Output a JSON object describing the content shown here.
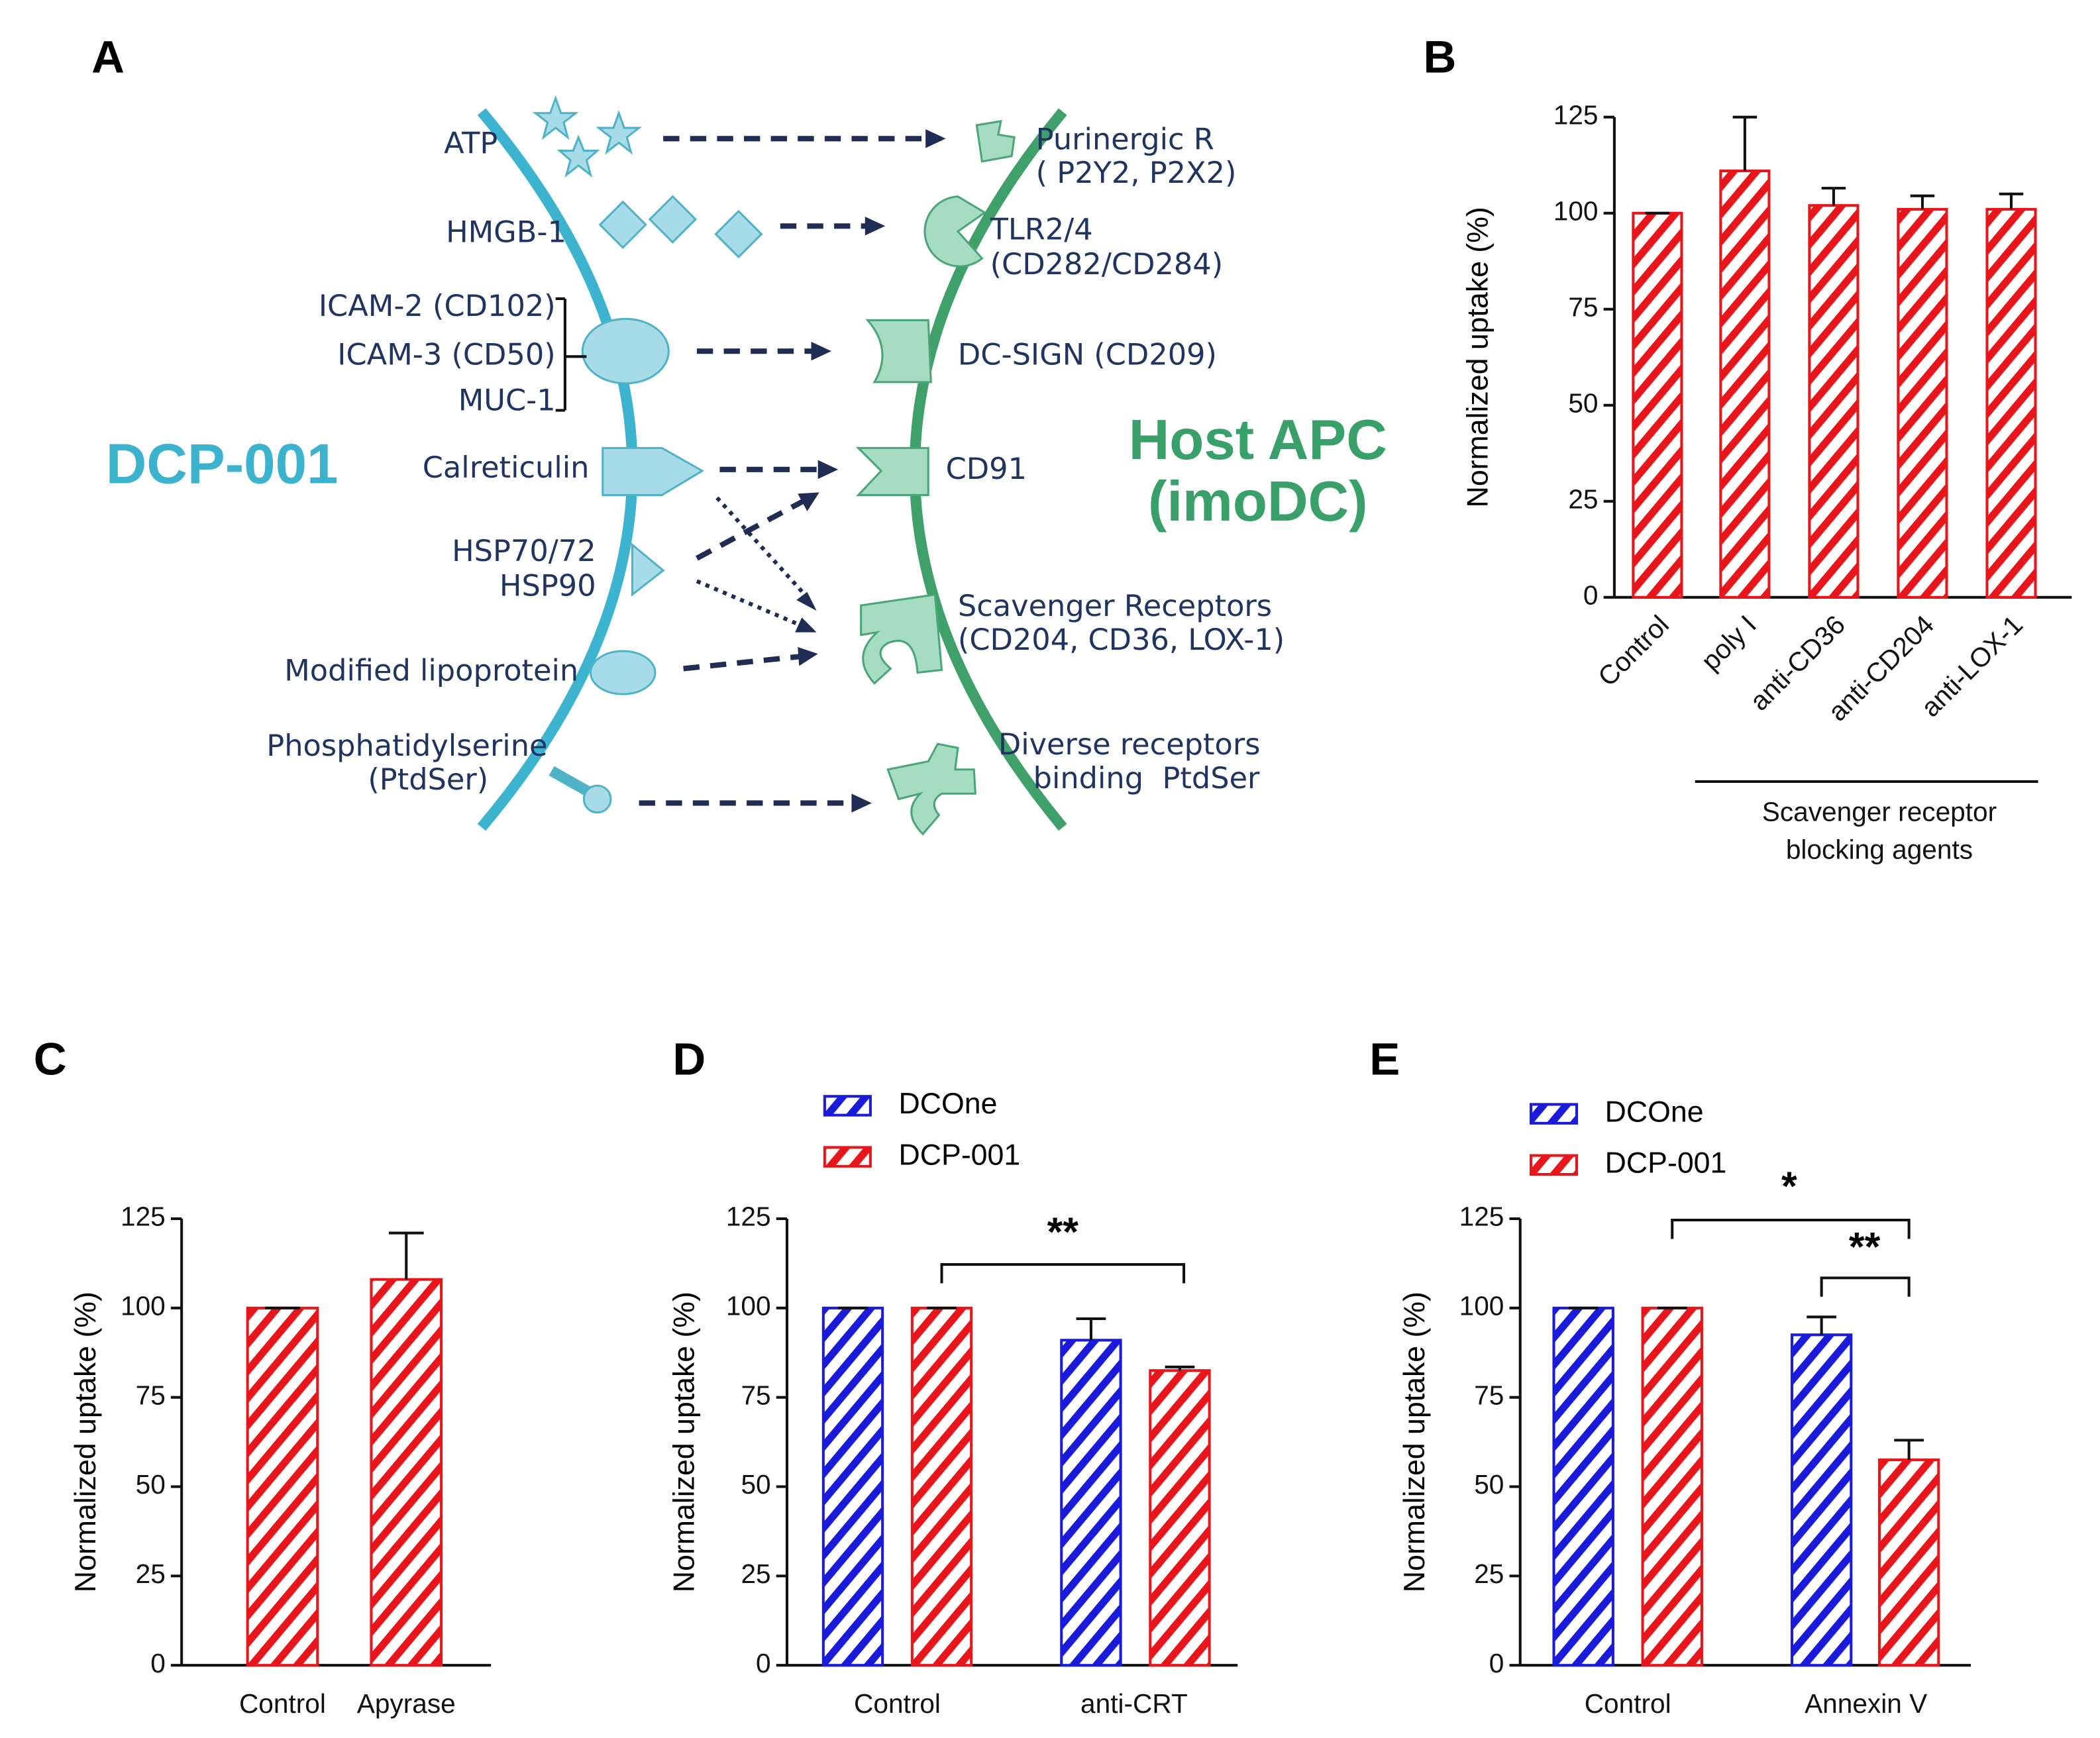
{
  "diagram": {
    "label": "A",
    "left_title": "DCP-001",
    "right_title": [
      "Host APC",
      "(imoDC)"
    ],
    "ligands": [
      [
        "ATP"
      ],
      [
        "HMGB-1"
      ],
      [
        "ICAM-2 (CD102)",
        "ICAM-3 (CD50)",
        "MUC-1"
      ],
      [
        "Calreticulin"
      ],
      [
        "HSP70/72",
        "HSP90"
      ],
      [
        "Modified lipoprotein"
      ],
      [
        "Phosphatidylserine",
        "(PtdSer)"
      ]
    ],
    "receptors": [
      [
        "Purinergic R",
        "( P2Y2, P2X2)"
      ],
      [
        "TLR2/4",
        "(CD282/CD284)"
      ],
      [
        "DC-SIGN (CD209)"
      ],
      [
        "CD91"
      ],
      [
        "Scavenger Receptors",
        "(CD204, CD36, LOX-1)"
      ],
      [
        "Diverse receptors",
        "binding  PtdSer"
      ]
    ]
  },
  "chart_data": [
    {
      "type": "bar",
      "label": "B",
      "ylabel": "Normalized uptake (%)",
      "categories": [
        "Control",
        "poly I",
        "anti-CD36",
        "anti-CD204",
        "anti-LOX-1"
      ],
      "values": [
        100,
        111,
        102,
        101,
        101
      ],
      "errors": [
        0,
        14,
        4.5,
        3.5,
        4
      ],
      "color": "#e8161b",
      "group_label": [
        "Scavenger receptor",
        "blocking agents"
      ],
      "ylim": [
        0,
        125
      ],
      "yticks": [
        0,
        25,
        50,
        75,
        100,
        125
      ]
    },
    {
      "type": "bar",
      "label": "C",
      "ylabel": "Normalized uptake (%)",
      "categories": [
        "Control",
        "Apyrase"
      ],
      "values": [
        100,
        108
      ],
      "errors": [
        0,
        13
      ],
      "color": "#e8161b",
      "ylim": [
        0,
        125
      ],
      "yticks": [
        0,
        25,
        50,
        75,
        100,
        125
      ]
    },
    {
      "type": "bar",
      "label": "D",
      "ylabel": "Normalized uptake (%)",
      "categories": [
        "Control",
        "anti-CRT"
      ],
      "series": [
        {
          "name": "DCOne",
          "color": "#1a1adb",
          "values": [
            100,
            91
          ],
          "errors": [
            0,
            6
          ]
        },
        {
          "name": "DCP-001",
          "color": "#e8161b",
          "values": [
            100,
            82.5
          ],
          "errors": [
            0,
            1
          ]
        }
      ],
      "annotations": [
        "**"
      ],
      "ylim": [
        0,
        125
      ],
      "yticks": [
        0,
        25,
        50,
        75,
        100,
        125
      ]
    },
    {
      "type": "bar",
      "label": "E",
      "ylabel": "Normalized uptake (%)",
      "categories": [
        "Control",
        "Annexin V"
      ],
      "series": [
        {
          "name": "DCOne",
          "color": "#1a1adb",
          "values": [
            100,
            92.5
          ],
          "errors": [
            0,
            5
          ]
        },
        {
          "name": "DCP-001",
          "color": "#e8161b",
          "values": [
            100,
            57.5
          ],
          "errors": [
            0,
            5.5
          ]
        }
      ],
      "annotations": [
        "*",
        "**"
      ],
      "ylim": [
        0,
        125
      ],
      "yticks": [
        0,
        25,
        50,
        75,
        100,
        125
      ]
    }
  ]
}
